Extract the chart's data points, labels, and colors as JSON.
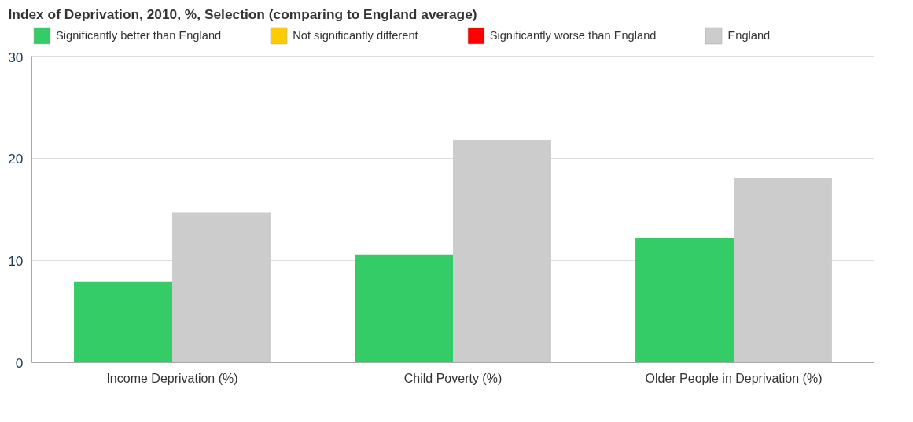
{
  "chart_data": {
    "type": "bar",
    "title": "Index of Deprivation, 2010, %, Selection (comparing to England average)",
    "categories": [
      "Income Deprivation (%)",
      "Child Poverty (%)",
      "Older People in Deprivation (%)"
    ],
    "series": [
      {
        "name": "Significantly better than England",
        "color": "#33cc66",
        "values": [
          7.9,
          10.6,
          12.2
        ]
      },
      {
        "name": "Not significantly different",
        "color": "#ffcc00",
        "values": [
          null,
          null,
          null
        ]
      },
      {
        "name": "Significantly worse than England",
        "color": "#ff0000",
        "values": [
          null,
          null,
          null
        ]
      },
      {
        "name": "England",
        "color": "#cccccc",
        "values": [
          14.7,
          21.8,
          18.1
        ]
      }
    ],
    "ylim": [
      0,
      30
    ],
    "yticks": [
      0,
      10,
      20,
      30
    ],
    "grid": "y",
    "legend": "top"
  }
}
